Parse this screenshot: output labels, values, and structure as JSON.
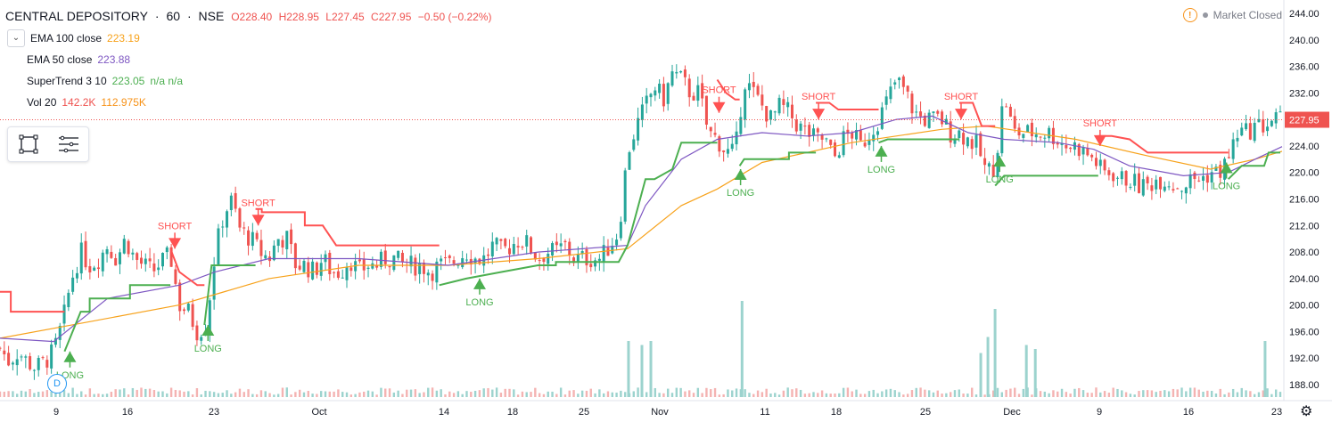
{
  "header": {
    "symbol": "CENTRAL DEPOSITORY",
    "interval": "60",
    "exchange": "NSE",
    "open": "O228.40",
    "high": "H228.95",
    "low": "L227.45",
    "close": "C227.95",
    "change": "−0.50 (−0.22%)"
  },
  "status": {
    "label": "Market Closed"
  },
  "indicators": [
    {
      "name": "EMA 100 close",
      "v1": "223.19",
      "v2": ""
    },
    {
      "name": "EMA 50 close",
      "v1": "223.88",
      "v2": ""
    },
    {
      "name": "SuperTrend 3 10",
      "v1": "223.05",
      "v2": "n/a  n/a"
    },
    {
      "name": "Vol 20",
      "v1": "142.2K",
      "v2": "112.975K"
    }
  ],
  "badges": {
    "d": "D"
  },
  "colors": {
    "up": "#26a69a",
    "down": "#ef5350",
    "ema100": "#f7a21b",
    "ema50": "#7e57c2",
    "st_up": "#4caf50",
    "st_down": "#ff5252",
    "price_line": "#ef5350",
    "vol_up": "#9cd3ce",
    "vol_down": "#f4b3b2"
  },
  "chart_data": {
    "type": "candlestick",
    "title": "CENTRAL DEPOSITORY · 60 · NSE",
    "ylim": [
      186,
      245
    ],
    "y_ticks": [
      "244.00",
      "240.00",
      "236.00",
      "232.00",
      "228.00",
      "224.00",
      "220.00",
      "216.00",
      "212.00",
      "208.00",
      "204.00",
      "200.00",
      "196.00",
      "192.00",
      "188.00"
    ],
    "x_labels": [
      "9",
      "16",
      "23",
      "Oct",
      "14",
      "18",
      "25",
      "Nov",
      "11",
      "18",
      "25",
      "Dec",
      "9",
      "16",
      "23"
    ],
    "last_price": "227.95",
    "last_price_value": 227.95,
    "bars": 300,
    "close_path": [
      [
        0,
        193.5
      ],
      [
        10,
        191.5
      ],
      [
        20,
        193
      ],
      [
        30,
        191.5
      ],
      [
        40,
        190.5
      ],
      [
        50,
        191.5
      ],
      [
        60,
        193
      ],
      [
        70,
        197.5
      ],
      [
        80,
        204
      ],
      [
        90,
        208
      ],
      [
        100,
        206
      ],
      [
        110,
        207
      ],
      [
        120,
        209
      ],
      [
        130,
        207
      ],
      [
        140,
        210
      ],
      [
        150,
        207
      ],
      [
        160,
        206
      ],
      [
        170,
        205
      ],
      [
        180,
        206.5
      ],
      [
        190,
        207.5
      ],
      [
        200,
        200
      ],
      [
        210,
        199
      ],
      [
        220,
        196
      ],
      [
        230,
        197
      ],
      [
        240,
        208
      ],
      [
        250,
        214
      ],
      [
        260,
        216
      ],
      [
        265,
        212
      ],
      [
        270,
        211
      ],
      [
        280,
        210
      ],
      [
        290,
        208
      ],
      [
        300,
        207
      ],
      [
        310,
        210
      ],
      [
        320,
        210
      ],
      [
        330,
        206
      ],
      [
        340,
        206
      ],
      [
        350,
        205
      ],
      [
        360,
        207
      ],
      [
        370,
        205
      ],
      [
        380,
        205
      ],
      [
        390,
        207
      ],
      [
        400,
        205
      ],
      [
        410,
        206
      ],
      [
        420,
        206
      ],
      [
        430,
        207
      ],
      [
        440,
        207
      ],
      [
        450,
        206
      ],
      [
        460,
        206
      ],
      [
        470,
        206
      ],
      [
        480,
        205
      ],
      [
        490,
        206
      ],
      [
        500,
        206
      ],
      [
        510,
        207
      ],
      [
        520,
        208
      ],
      [
        530,
        207
      ],
      [
        540,
        207
      ],
      [
        550,
        209
      ],
      [
        560,
        208
      ],
      [
        570,
        209
      ],
      [
        580,
        210
      ],
      [
        590,
        209
      ],
      [
        600,
        207
      ],
      [
        610,
        208
      ],
      [
        620,
        208
      ],
      [
        630,
        209
      ],
      [
        640,
        207
      ],
      [
        650,
        207
      ],
      [
        660,
        207
      ],
      [
        670,
        207
      ],
      [
        680,
        209
      ],
      [
        690,
        211
      ],
      [
        700,
        223
      ],
      [
        710,
        227
      ],
      [
        720,
        230
      ],
      [
        730,
        233
      ],
      [
        740,
        231
      ],
      [
        750,
        235
      ],
      [
        760,
        234
      ],
      [
        770,
        232
      ],
      [
        780,
        232
      ],
      [
        790,
        226
      ],
      [
        800,
        225
      ],
      [
        810,
        223
      ],
      [
        820,
        223
      ],
      [
        830,
        234
      ],
      [
        840,
        232
      ],
      [
        850,
        230
      ],
      [
        860,
        228
      ],
      [
        870,
        230
      ],
      [
        880,
        229
      ],
      [
        890,
        227
      ],
      [
        900,
        226
      ],
      [
        910,
        225
      ],
      [
        920,
        225
      ],
      [
        930,
        222
      ],
      [
        940,
        225
      ],
      [
        950,
        226
      ],
      [
        960,
        224
      ],
      [
        970,
        226
      ],
      [
        980,
        228
      ],
      [
        990,
        231
      ],
      [
        1000,
        234
      ],
      [
        1010,
        232
      ],
      [
        1020,
        229
      ],
      [
        1030,
        228
      ],
      [
        1040,
        228
      ],
      [
        1050,
        228
      ],
      [
        1060,
        226
      ],
      [
        1070,
        226
      ],
      [
        1080,
        225
      ],
      [
        1090,
        224
      ],
      [
        1100,
        220
      ],
      [
        1110,
        221
      ],
      [
        1120,
        232
      ],
      [
        1130,
        226
      ],
      [
        1140,
        226
      ],
      [
        1150,
        226
      ],
      [
        1160,
        226
      ],
      [
        1170,
        226
      ],
      [
        1180,
        225
      ],
      [
        1190,
        224
      ],
      [
        1200,
        224
      ],
      [
        1210,
        223
      ],
      [
        1220,
        222
      ],
      [
        1230,
        220
      ],
      [
        1240,
        220
      ],
      [
        1250,
        219
      ],
      [
        1260,
        219
      ],
      [
        1270,
        218
      ],
      [
        1280,
        218
      ],
      [
        1290,
        219
      ],
      [
        1300,
        219
      ],
      [
        1310,
        218
      ],
      [
        1320,
        218
      ],
      [
        1330,
        219
      ],
      [
        1340,
        219
      ],
      [
        1350,
        220
      ],
      [
        1360,
        220
      ],
      [
        1370,
        222
      ],
      [
        1380,
        226
      ],
      [
        1390,
        226
      ],
      [
        1400,
        227
      ],
      [
        1410,
        227
      ],
      [
        1420,
        228
      ],
      [
        1428,
        228
      ]
    ],
    "ema100_path": [
      [
        0,
        195
      ],
      [
        100,
        197.5
      ],
      [
        200,
        200
      ],
      [
        300,
        204
      ],
      [
        400,
        206
      ],
      [
        500,
        206
      ],
      [
        600,
        207
      ],
      [
        700,
        208.5
      ],
      [
        760,
        215
      ],
      [
        800,
        217.5
      ],
      [
        850,
        221.5
      ],
      [
        950,
        224.5
      ],
      [
        1050,
        226.5
      ],
      [
        1100,
        227
      ],
      [
        1150,
        226
      ],
      [
        1200,
        225
      ],
      [
        1280,
        222.5
      ],
      [
        1350,
        220.5
      ],
      [
        1400,
        222
      ],
      [
        1430,
        223.2
      ]
    ],
    "ema50_path": [
      [
        0,
        195
      ],
      [
        60,
        194.5
      ],
      [
        120,
        201
      ],
      [
        200,
        203
      ],
      [
        240,
        205
      ],
      [
        300,
        207
      ],
      [
        400,
        207
      ],
      [
        500,
        206
      ],
      [
        600,
        208
      ],
      [
        700,
        209
      ],
      [
        720,
        215
      ],
      [
        760,
        222
      ],
      [
        800,
        225
      ],
      [
        850,
        226
      ],
      [
        900,
        225.5
      ],
      [
        950,
        226
      ],
      [
        1000,
        228
      ],
      [
        1040,
        228.5
      ],
      [
        1080,
        226
      ],
      [
        1120,
        225
      ],
      [
        1180,
        224.5
      ],
      [
        1220,
        223.5
      ],
      [
        1260,
        221
      ],
      [
        1320,
        219.5
      ],
      [
        1370,
        220
      ],
      [
        1400,
        222
      ],
      [
        1430,
        223.9
      ]
    ],
    "supertrend_segments": [
      {
        "dir": "down",
        "path": [
          [
            0,
            202
          ],
          [
            12,
            202
          ],
          [
            12,
            199
          ],
          [
            72,
            199
          ]
        ]
      },
      {
        "dir": "up",
        "path": [
          [
            72,
            193
          ],
          [
            90,
            199
          ],
          [
            100,
            199
          ],
          [
            100,
            201
          ],
          [
            145,
            201
          ],
          [
            145,
            203
          ],
          [
            190,
            203
          ]
        ]
      },
      {
        "dir": "down",
        "path": [
          [
            190,
            208.5
          ],
          [
            200,
            205
          ],
          [
            220,
            203
          ],
          [
            228,
            203
          ]
        ]
      },
      {
        "dir": "up",
        "path": [
          [
            228,
            197
          ],
          [
            236,
            206
          ],
          [
            285,
            206
          ]
        ]
      },
      {
        "dir": "down",
        "path": [
          [
            285,
            214.5
          ],
          [
            292,
            214.5
          ],
          [
            292,
            214
          ],
          [
            340,
            214
          ],
          [
            340,
            212
          ],
          [
            360,
            212
          ],
          [
            375,
            209
          ],
          [
            490,
            209
          ]
        ]
      },
      {
        "dir": "up",
        "path": [
          [
            490,
            203
          ],
          [
            520,
            204
          ],
          [
            560,
            205
          ],
          [
            600,
            206
          ],
          [
            620,
            206
          ],
          [
            620,
            206.5
          ],
          [
            690,
            206.5
          ],
          [
            700,
            209
          ],
          [
            710,
            214
          ],
          [
            720,
            219
          ],
          [
            730,
            219
          ],
          [
            750,
            220.5
          ],
          [
            760,
            224.5
          ],
          [
            800,
            224.5
          ]
        ]
      },
      {
        "dir": "down",
        "path": [
          [
            800,
            234
          ],
          [
            810,
            232
          ],
          [
            820,
            231
          ],
          [
            825,
            231
          ]
        ]
      },
      {
        "dir": "up",
        "path": [
          [
            825,
            221
          ],
          [
            830,
            222
          ],
          [
            880,
            222
          ],
          [
            880,
            223
          ],
          [
            910,
            223
          ]
        ]
      },
      {
        "dir": "down",
        "path": [
          [
            910,
            230.5
          ],
          [
            925,
            230.5
          ],
          [
            935,
            229.5
          ],
          [
            980,
            229.5
          ]
        ]
      },
      {
        "dir": "up",
        "path": [
          [
            980,
            224.5
          ],
          [
            990,
            225
          ],
          [
            1070,
            225
          ]
        ]
      },
      {
        "dir": "down",
        "path": [
          [
            1070,
            230.5
          ],
          [
            1085,
            230.5
          ],
          [
            1095,
            227
          ],
          [
            1110,
            227
          ]
        ]
      },
      {
        "dir": "up",
        "path": [
          [
            1110,
            218
          ],
          [
            1120,
            219.5
          ],
          [
            1225,
            219.5
          ]
        ]
      },
      {
        "dir": "down",
        "path": [
          [
            1225,
            225.5
          ],
          [
            1240,
            225.5
          ],
          [
            1260,
            225
          ],
          [
            1280,
            223
          ],
          [
            1370,
            223
          ]
        ]
      },
      {
        "dir": "up",
        "path": [
          [
            1370,
            219
          ],
          [
            1385,
            221
          ],
          [
            1410,
            221
          ],
          [
            1415,
            223
          ],
          [
            1428,
            223
          ]
        ]
      }
    ],
    "signals": [
      {
        "type": "SHORT",
        "bar": 195,
        "price": 208.5
      },
      {
        "type": "LONG",
        "bar": 78,
        "price": 193
      },
      {
        "type": "LONG",
        "bar": 232,
        "price": 197
      },
      {
        "type": "SHORT",
        "bar": 288,
        "price": 212
      },
      {
        "type": "LONG",
        "bar": 535,
        "price": 204
      },
      {
        "type": "SHORT",
        "bar": 802,
        "price": 229
      },
      {
        "type": "LONG",
        "bar": 826,
        "price": 220.5
      },
      {
        "type": "SHORT",
        "bar": 913,
        "price": 228
      },
      {
        "type": "LONG",
        "bar": 983,
        "price": 224
      },
      {
        "type": "SHORT",
        "bar": 1072,
        "price": 228
      },
      {
        "type": "LONG",
        "bar": 1115,
        "price": 222.5
      },
      {
        "type": "SHORT",
        "bar": 1227,
        "price": 224
      },
      {
        "type": "LONG",
        "bar": 1368,
        "price": 221.5
      }
    ],
    "volume_spikes": [
      {
        "bar": 703,
        "vol": 7
      },
      {
        "bar": 718,
        "vol": 6.5
      },
      {
        "bar": 728,
        "vol": 7
      },
      {
        "bar": 830,
        "vol": 12
      },
      {
        "bar": 1105,
        "vol": 7.5
      },
      {
        "bar": 1113,
        "vol": 11
      },
      {
        "bar": 1148,
        "vol": 6.5
      },
      {
        "bar": 1158,
        "vol": 6
      },
      {
        "bar": 1415,
        "vol": 7
      },
      {
        "bar": 1097,
        "vol": 5.5
      }
    ]
  }
}
